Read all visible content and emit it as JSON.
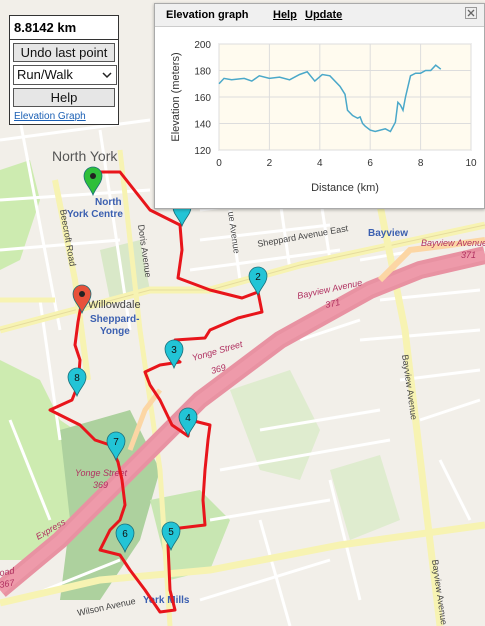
{
  "panel": {
    "distance": "8.8142 km",
    "undo_label": "Undo last point",
    "mode_value": "Run/Walk",
    "help_label": "Help",
    "elevation_link": "Elevation Graph"
  },
  "elevation_window": {
    "title": "Elevation graph",
    "help_label": "Help",
    "update_label": "Update",
    "close_icon": "close-icon"
  },
  "map_labels": {
    "north_york": "North York",
    "north_york_centre_1": "North",
    "north_york_centre_2": "York Centre",
    "willowdale": "Willowdale",
    "sheppard_yonge_1": "Sheppard-",
    "sheppard_yonge_2": "Yonge",
    "bayview_top": "Bayview",
    "york_mills": "York Mills",
    "beecroft": "Beecroft Road",
    "doris": "Doris Avenue",
    "sheppard_east": "Sheppard Avenue East",
    "bayview_ave_371a": "Bayview Avenue",
    "bayview_ave_371a_num": "371",
    "bayview_ave_371b": "Bayview Avenue",
    "bayview_ave_371b_num": "371",
    "yonge_369a": "Yonge Street",
    "yonge_369a_num": "369",
    "yonge_369b": "Yonge Street",
    "yonge_369b_num": "369",
    "express": "Express",
    "wilson": "Wilson Avenue",
    "bayview_vertical": "Bayview Avenue",
    "bayview_vertical_2": "Bayview Avenue",
    "oad_367_1": "oad",
    "oad_367_2": "367",
    "ue_avenue": "ue Avenue"
  },
  "markers": [
    {
      "label": "",
      "color": "#2fbf3a",
      "role": "start"
    },
    {
      "label": "",
      "color": "#e8513a",
      "role": "end"
    },
    {
      "label": "2",
      "color": "#22c4d6"
    },
    {
      "label": "3",
      "color": "#22c4d6"
    },
    {
      "label": "4",
      "color": "#22c4d6"
    },
    {
      "label": "5",
      "color": "#22c4d6"
    },
    {
      "label": "6",
      "color": "#22c4d6"
    },
    {
      "label": "7",
      "color": "#22c4d6"
    },
    {
      "label": "8",
      "color": "#22c4d6"
    },
    {
      "label": "",
      "color": "#22c4d6"
    }
  ],
  "colors": {
    "route": "#e8151b",
    "marker_cyan": "#22c4d6",
    "elev_line": "#4aa8c9",
    "plot_bg": "#fffbef"
  },
  "chart_data": {
    "type": "line",
    "xlabel": "Distance (km)",
    "ylabel": "Elevation (meters)",
    "xlim": [
      0,
      10
    ],
    "ylim": [
      120,
      200
    ],
    "xticks": [
      "0",
      "2",
      "4",
      "6",
      "8",
      "10"
    ],
    "yticks": [
      "120",
      "140",
      "160",
      "180",
      "200"
    ],
    "grid": true,
    "series": [
      {
        "x": [
          0,
          0.2,
          0.5,
          1.0,
          1.3,
          1.6,
          2.0,
          2.4,
          2.8,
          3.2,
          3.5,
          3.8,
          4.1,
          4.4,
          4.8,
          5.0,
          5.1,
          5.3,
          5.4,
          5.5,
          5.6,
          5.7,
          5.8,
          6.0,
          6.2,
          6.4,
          6.6,
          6.8,
          7.0,
          7.1,
          7.2,
          7.3,
          7.4,
          7.6,
          7.8,
          8.0,
          8.2,
          8.4,
          8.6,
          8.8
        ],
        "values": [
          170,
          174,
          173,
          174,
          172,
          176,
          174,
          175,
          173,
          177,
          179,
          172,
          177,
          176,
          168,
          162,
          150,
          146,
          145,
          144,
          145,
          140,
          138,
          135,
          134,
          135,
          136,
          134,
          141,
          156,
          154,
          150,
          160,
          176,
          178,
          178,
          180,
          180,
          184,
          181
        ]
      }
    ]
  }
}
